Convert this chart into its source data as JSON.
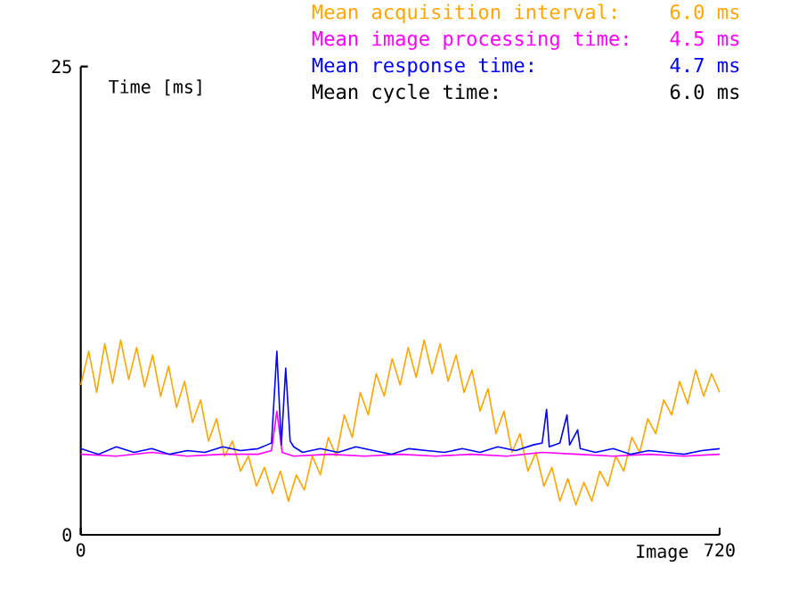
{
  "chart_data": {
    "type": "line",
    "xlabel": "Image",
    "ylabel": "Time [ms]",
    "xlim": [
      0,
      720
    ],
    "ylim": [
      0,
      25
    ],
    "xticks": [
      0,
      720
    ],
    "yticks": [
      0,
      25
    ],
    "grid": false,
    "legend": "top right",
    "marker": "none",
    "line_style": "solid",
    "annotations": [
      "6.0 ms",
      "4.5 ms",
      "4.7 ms",
      "Mean cycle time:",
      "6.0 ms"
    ],
    "series": [
      {
        "name": "Mean acquisition interval:",
        "color": "#ffa500",
        "x": [
          0,
          9,
          18,
          27,
          36,
          45,
          54,
          63,
          72,
          81,
          90,
          99,
          108,
          117,
          126,
          135,
          144,
          153,
          162,
          171,
          180,
          189,
          198,
          207,
          216,
          225,
          234,
          243,
          252,
          261,
          270,
          279,
          288,
          297,
          306,
          315,
          324,
          333,
          342,
          351,
          360,
          369,
          378,
          387,
          396,
          405,
          414,
          423,
          432,
          441,
          450,
          459,
          468,
          477,
          486,
          495,
          504,
          513,
          522,
          531,
          540,
          549,
          558,
          567,
          576,
          585,
          594,
          603,
          612,
          621,
          630,
          639,
          648,
          657,
          666,
          675,
          684,
          693,
          702,
          711,
          720
        ],
        "values": [
          8.0,
          9.8,
          7.6,
          10.2,
          8.1,
          10.4,
          8.3,
          10.0,
          7.9,
          9.6,
          7.4,
          9.0,
          6.8,
          8.2,
          6.0,
          7.2,
          5.0,
          6.2,
          4.2,
          5.0,
          3.4,
          4.2,
          2.6,
          3.6,
          2.2,
          3.4,
          1.8,
          3.2,
          2.4,
          4.2,
          3.2,
          5.2,
          4.2,
          6.4,
          5.2,
          7.6,
          6.4,
          8.6,
          7.4,
          9.4,
          8.0,
          10.0,
          8.4,
          10.4,
          8.6,
          10.2,
          8.2,
          9.6,
          7.6,
          8.8,
          6.6,
          7.8,
          5.4,
          6.6,
          4.4,
          5.4,
          3.4,
          4.4,
          2.6,
          3.6,
          1.8,
          3.0,
          1.6,
          2.8,
          1.8,
          3.4,
          2.6,
          4.2,
          3.4,
          5.2,
          4.4,
          6.2,
          5.4,
          7.2,
          6.4,
          8.2,
          7.0,
          8.8,
          7.4,
          8.6,
          7.6
        ]
      },
      {
        "name": "Mean image processing time:",
        "color": "#ff00ff",
        "x": [
          0,
          40,
          80,
          120,
          160,
          200,
          215,
          221,
          227,
          240,
          280,
          320,
          360,
          400,
          440,
          480,
          520,
          560,
          600,
          640,
          680,
          720
        ],
        "values": [
          4.3,
          4.2,
          4.4,
          4.2,
          4.3,
          4.3,
          4.5,
          6.6,
          4.4,
          4.2,
          4.3,
          4.2,
          4.3,
          4.2,
          4.3,
          4.2,
          4.4,
          4.3,
          4.2,
          4.3,
          4.2,
          4.3
        ]
      },
      {
        "name": "Mean response time:",
        "color": "#0000ff",
        "x": [
          0,
          20,
          40,
          60,
          80,
          100,
          120,
          140,
          160,
          180,
          200,
          210,
          215,
          221,
          226,
          231,
          236,
          240,
          250,
          270,
          290,
          310,
          330,
          350,
          370,
          390,
          410,
          430,
          450,
          470,
          490,
          510,
          520,
          525,
          528,
          540,
          548,
          551,
          560,
          563,
          580,
          600,
          620,
          640,
          660,
          680,
          700,
          720
        ],
        "values": [
          4.6,
          4.3,
          4.7,
          4.4,
          4.6,
          4.3,
          4.5,
          4.4,
          4.7,
          4.5,
          4.6,
          4.8,
          4.9,
          9.8,
          4.8,
          8.9,
          5.0,
          4.7,
          4.4,
          4.6,
          4.4,
          4.7,
          4.5,
          4.3,
          4.6,
          4.5,
          4.4,
          4.6,
          4.4,
          4.7,
          4.5,
          4.8,
          4.9,
          6.7,
          4.7,
          4.9,
          6.4,
          4.8,
          5.6,
          4.6,
          4.4,
          4.6,
          4.3,
          4.5,
          4.4,
          4.3,
          4.5,
          4.6
        ]
      }
    ]
  }
}
